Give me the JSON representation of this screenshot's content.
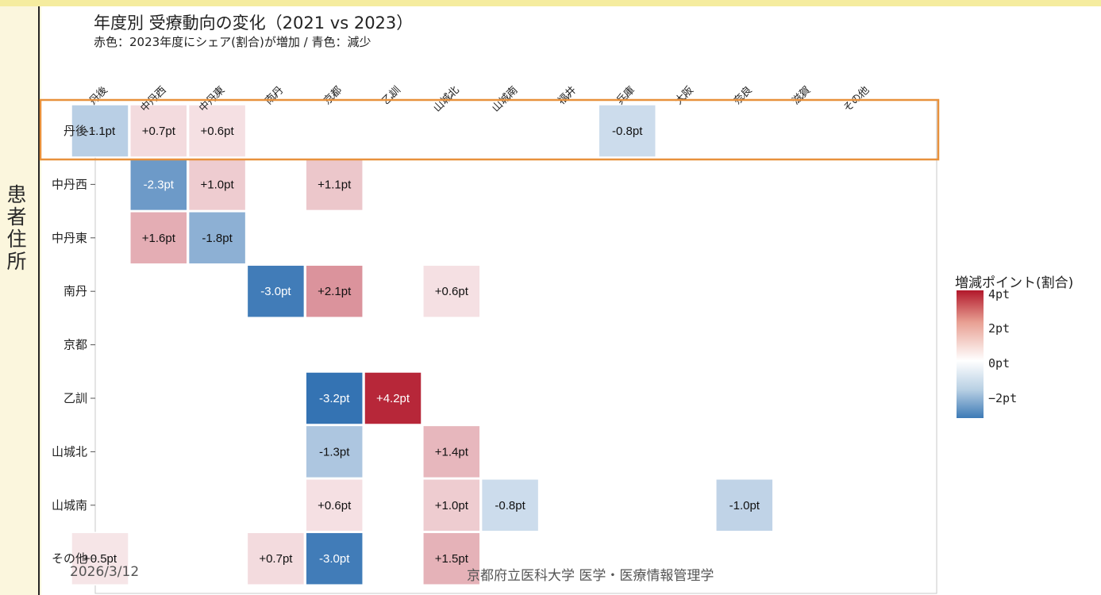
{
  "title": "年度別 受療動向の変化（2021 vs 2023）",
  "subtitle": "赤色：2023年度にシェア(割合)が増加 / 青色：減少",
  "ylabel": "患者住所",
  "legend": {
    "title": "増減ポイント(割合)",
    "labels": [
      "4pt",
      "2pt",
      "0pt",
      "−2pt"
    ],
    "colors": {
      "max": "#b2182b",
      "mid": "#ffffff",
      "min": "#2166ac"
    }
  },
  "footer": {
    "date": "2026/3/12",
    "org": "京都府立医科大学 医学・医療情報管理学"
  },
  "highlight_row": "丹後",
  "chart_data": {
    "type": "heatmap",
    "x_categories": [
      "丹後",
      "中丹西",
      "中丹東",
      "南丹",
      "京都",
      "乙訓",
      "山城北",
      "山城南",
      "福井",
      "兵庫",
      "大阪",
      "奈良",
      "滋賀",
      "その他"
    ],
    "y_categories": [
      "丹後",
      "中丹西",
      "中丹東",
      "南丹",
      "京都",
      "乙訓",
      "山城北",
      "山城南",
      "その他"
    ],
    "ylabel": "患者住所",
    "value_range": [
      -3.5,
      4.5
    ],
    "cells": [
      {
        "row": "丹後",
        "col": "丹後",
        "value": -1.1,
        "label": "-1.1pt"
      },
      {
        "row": "丹後",
        "col": "中丹西",
        "value": 0.7,
        "label": "+0.7pt"
      },
      {
        "row": "丹後",
        "col": "中丹東",
        "value": 0.6,
        "label": "+0.6pt"
      },
      {
        "row": "丹後",
        "col": "兵庫",
        "value": -0.8,
        "label": "-0.8pt"
      },
      {
        "row": "中丹西",
        "col": "中丹西",
        "value": -2.3,
        "label": "-2.3pt"
      },
      {
        "row": "中丹西",
        "col": "中丹東",
        "value": 1.0,
        "label": "+1.0pt"
      },
      {
        "row": "中丹西",
        "col": "京都",
        "value": 1.1,
        "label": "+1.1pt"
      },
      {
        "row": "中丹東",
        "col": "中丹西",
        "value": 1.6,
        "label": "+1.6pt"
      },
      {
        "row": "中丹東",
        "col": "中丹東",
        "value": -1.8,
        "label": "-1.8pt"
      },
      {
        "row": "南丹",
        "col": "南丹",
        "value": -3.0,
        "label": "-3.0pt"
      },
      {
        "row": "南丹",
        "col": "京都",
        "value": 2.1,
        "label": "+2.1pt"
      },
      {
        "row": "南丹",
        "col": "山城北",
        "value": 0.6,
        "label": "+0.6pt"
      },
      {
        "row": "乙訓",
        "col": "京都",
        "value": -3.2,
        "label": "-3.2pt"
      },
      {
        "row": "乙訓",
        "col": "乙訓",
        "value": 4.2,
        "label": "+4.2pt"
      },
      {
        "row": "山城北",
        "col": "京都",
        "value": -1.3,
        "label": "-1.3pt"
      },
      {
        "row": "山城北",
        "col": "山城北",
        "value": 1.4,
        "label": "+1.4pt"
      },
      {
        "row": "山城南",
        "col": "京都",
        "value": 0.6,
        "label": "+0.6pt"
      },
      {
        "row": "山城南",
        "col": "山城北",
        "value": 1.0,
        "label": "+1.0pt"
      },
      {
        "row": "山城南",
        "col": "山城南",
        "value": -0.8,
        "label": "-0.8pt"
      },
      {
        "row": "山城南",
        "col": "奈良",
        "value": -1.0,
        "label": "-1.0pt"
      },
      {
        "row": "その他",
        "col": "丹後",
        "value": 0.5,
        "label": "+0.5pt"
      },
      {
        "row": "その他",
        "col": "南丹",
        "value": 0.7,
        "label": "+0.7pt"
      },
      {
        "row": "その他",
        "col": "京都",
        "value": -3.0,
        "label": "-3.0pt"
      },
      {
        "row": "その他",
        "col": "山城北",
        "value": 1.5,
        "label": "+1.5pt"
      }
    ]
  }
}
